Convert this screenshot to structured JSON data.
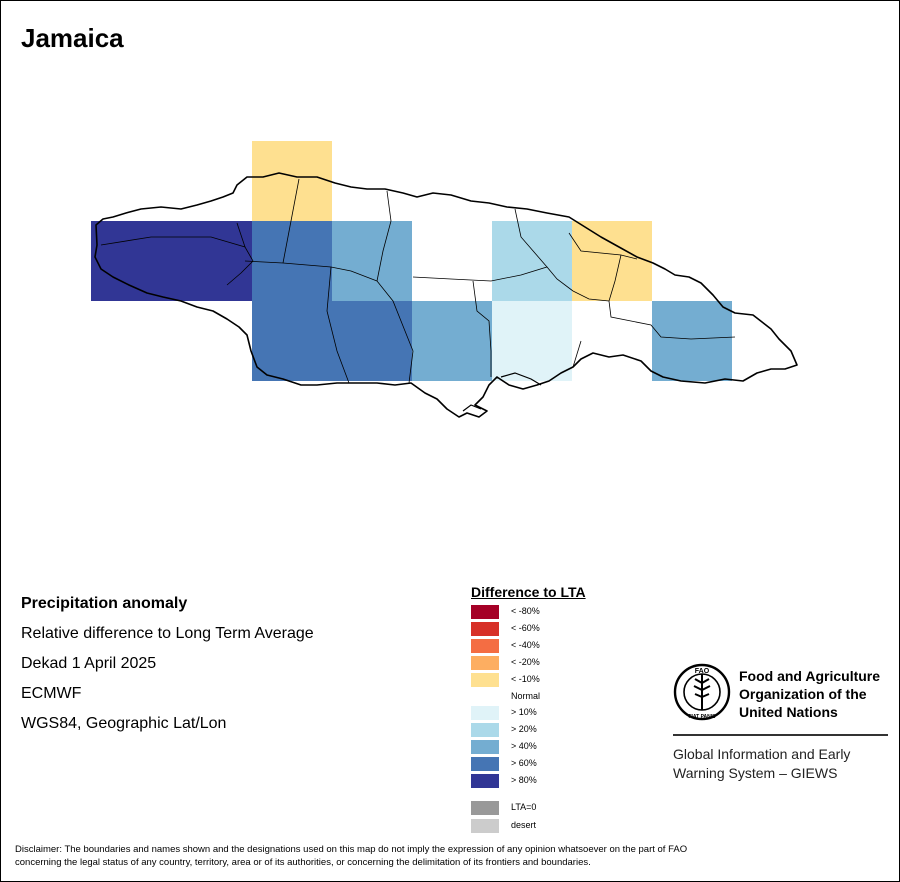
{
  "map": {
    "title": "Jamaica",
    "colors": {
      "lt80": "#a50026",
      "lt60": "#d73027",
      "lt40": "#f46d43",
      "lt20": "#fdae61",
      "lt10": "#fee090",
      "normal": "#ffffff",
      "gt10": "#e0f3f8",
      "gt20": "#abd9e9",
      "gt40": "#74add1",
      "gt60": "#4575b4",
      "gt80": "#313695",
      "lta0": "#999999",
      "desert": "#cccccc"
    }
  },
  "info": {
    "heading": "Precipitation anomaly",
    "line1": "Relative difference to Long Term Average",
    "line2": "Dekad 1 April 2025",
    "line3": "ECMWF",
    "line4": "WGS84, Geographic Lat/Lon"
  },
  "legend": {
    "title": "Difference to LTA",
    "items": [
      {
        "label": "< -80%",
        "color": "#a50026"
      },
      {
        "label": "< -60%",
        "color": "#d73027"
      },
      {
        "label": "< -40%",
        "color": "#f46d43"
      },
      {
        "label": "< -20%",
        "color": "#fdae61"
      },
      {
        "label": "< -10%",
        "color": "#fee090"
      },
      {
        "label": "Normal",
        "color": "#ffffff"
      },
      {
        "label": "> 10%",
        "color": "#e0f3f8"
      },
      {
        "label": "> 20%",
        "color": "#abd9e9"
      },
      {
        "label": "> 40%",
        "color": "#74add1"
      },
      {
        "label": "> 60%",
        "color": "#4575b4"
      },
      {
        "label": "> 80%",
        "color": "#313695"
      },
      {
        "label": "LTA=0",
        "color": "#999999"
      },
      {
        "label": "desert",
        "color": "#cccccc"
      }
    ]
  },
  "org": {
    "name_line1": "Food and Agriculture",
    "name_line2": "Organization of the",
    "name_line3": "United Nations",
    "system_line1": "Global Information and Early",
    "system_line2": "Warning System – GIEWS",
    "logo_text": "FAO",
    "logo_motto": "FIAT PANIS"
  },
  "disclaimer": {
    "line1": "Disclaimer: The boundaries and names shown and the designations used on this map do not imply the expression of any opinion whatsoever on the part of FAO",
    "line2": "concerning the legal status of any country, territory, area or of its authorities, or concerning the delimitation of its frontiers and boundaries."
  }
}
